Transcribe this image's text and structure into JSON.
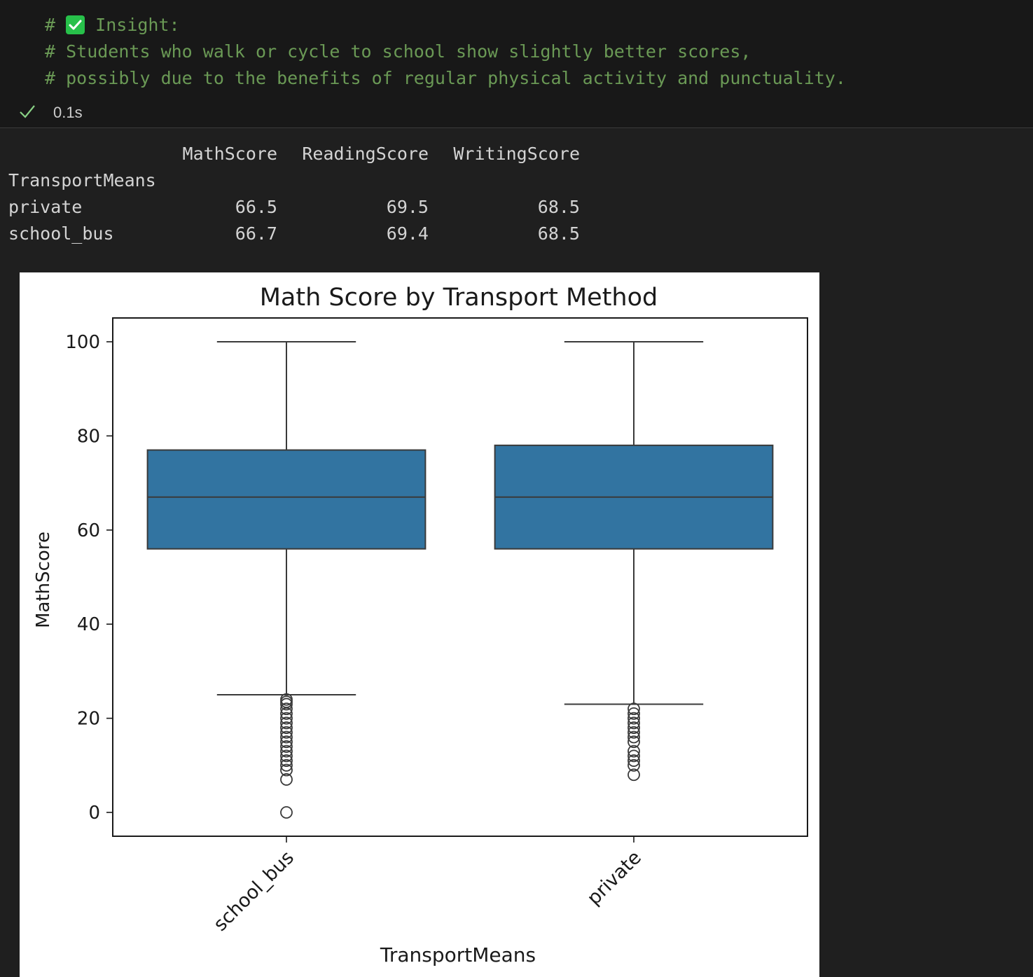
{
  "code": {
    "line1_prefix": "# ",
    "line1_icon": "white-check-mark-emoji",
    "line1_text": " Insight:",
    "line2": "# Students who walk or cycle to school show slightly better scores,",
    "line3": "# possibly due to the benefits of regular physical activity and punctuality."
  },
  "execution": {
    "status_icon": "check-icon",
    "time": "0.1s"
  },
  "table": {
    "index_name": "TransportMeans",
    "columns": [
      "MathScore",
      "ReadingScore",
      "WritingScore"
    ],
    "rows": [
      {
        "label": "private",
        "values": [
          "66.5",
          "69.5",
          "68.5"
        ]
      },
      {
        "label": "school_bus",
        "values": [
          "66.7",
          "69.4",
          "68.5"
        ]
      }
    ]
  },
  "chart_data": {
    "type": "box",
    "title": "Math Score by Transport Method",
    "xlabel": "TransportMeans",
    "ylabel": "MathScore",
    "ylim": [
      -5,
      105
    ],
    "yticks": [
      0,
      20,
      40,
      60,
      80,
      100
    ],
    "categories": [
      "school_bus",
      "private"
    ],
    "box_color": "#3274a1",
    "boxes": [
      {
        "category": "school_bus",
        "whisker_low": 25,
        "q1": 56,
        "median": 67,
        "q3": 77,
        "whisker_high": 100,
        "outliers": [
          24,
          23.5,
          23,
          22,
          21,
          20,
          19,
          18,
          17,
          16,
          15,
          14,
          13,
          12,
          11,
          10,
          9,
          7,
          0
        ]
      },
      {
        "category": "private",
        "whisker_low": 23,
        "q1": 56,
        "median": 67,
        "q3": 78,
        "whisker_high": 100,
        "outliers": [
          22,
          21,
          20,
          19,
          18,
          17,
          16,
          15,
          13,
          12,
          11,
          10,
          8
        ]
      }
    ]
  }
}
